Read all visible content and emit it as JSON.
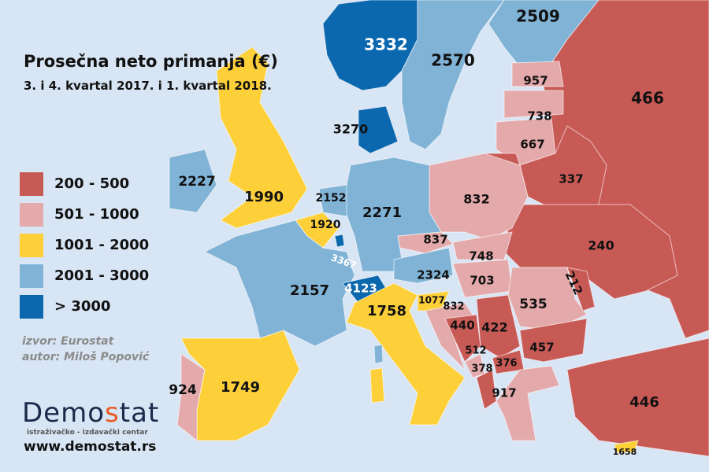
{
  "title": "Prosečna neto primanja (€)",
  "subtitle": "3. i 4. kvartal 2017. i 1.  kvartal 2018.",
  "legend": [
    {
      "label": "200 - 500",
      "color": "#c85a56"
    },
    {
      "label": "501 - 1000",
      "color": "#e4a9aa"
    },
    {
      "label": "1001 - 2000",
      "color": "#fdd03a"
    },
    {
      "label": "2001 - 3000",
      "color": "#80b3d6"
    },
    {
      "label": "> 3000",
      "color": "#0b67ae"
    }
  ],
  "source": "izvor: Eurostat",
  "author": "autor: Miloš Popović",
  "logo": {
    "part1": "Demo",
    "part2": "s",
    "part3": "tat",
    "tagline": "istraživačko - izdavački  centar"
  },
  "url": "www.demostat.rs",
  "values": {
    "norway": "3332",
    "sweden": "2570",
    "finland": "2509",
    "russia": "466",
    "estonia": "957",
    "latvia": "738",
    "lithuania": "667",
    "denmark": "3270",
    "ireland": "2227",
    "uk": "1990",
    "netherlands": "2152",
    "belgium": "1920",
    "germany": "2271",
    "poland": "832",
    "belarus": "337",
    "ukraine": "240",
    "luxembourg": "3367",
    "czechia": "837",
    "slovakia": "748",
    "austria": "2324",
    "hungary": "703",
    "moldova": "212",
    "romania": "535",
    "france": "2157",
    "switzerland": "4123",
    "italy": "1758",
    "slovenia": "1077",
    "croatia": "832",
    "bosnia": "440",
    "serbia": "422",
    "montenegro": "512",
    "albania": "378",
    "macedonia": "376",
    "bulgaria": "457",
    "greece": "917",
    "spain": "1749",
    "portugal": "924",
    "turkey": "446",
    "cyprus": "1658"
  }
}
